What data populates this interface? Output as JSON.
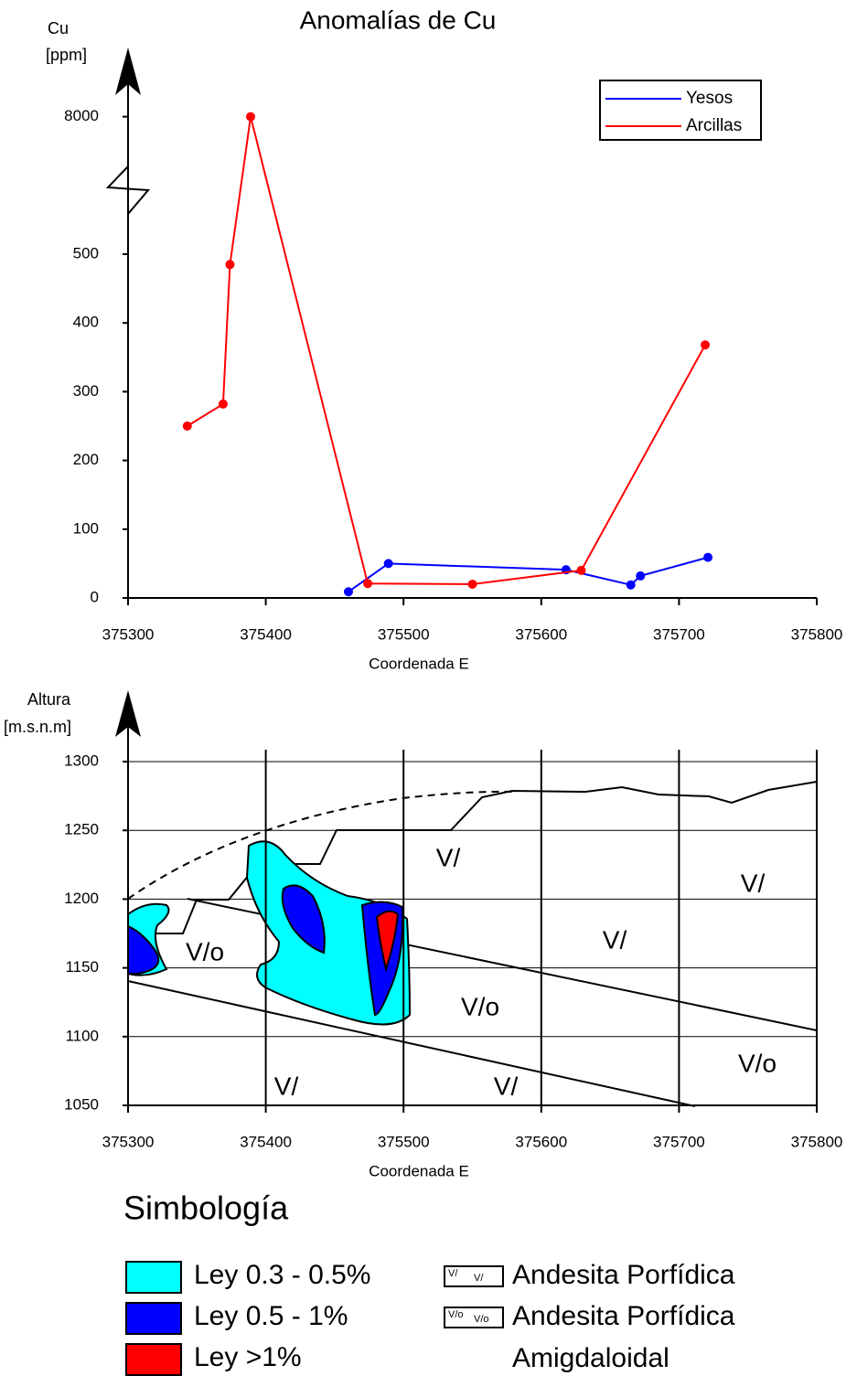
{
  "chart_data": [
    {
      "type": "line",
      "title": "Anomalías de Cu",
      "y_label": [
        "Cu",
        "[ppm]"
      ],
      "x_label": "Coordenada E",
      "xlim": [
        375300,
        375800
      ],
      "xticks": [
        375300,
        375400,
        375500,
        375600,
        375700,
        375800
      ],
      "ylim": [
        0,
        8000
      ],
      "yticks": [
        0,
        100,
        200,
        300,
        400,
        500,
        8000
      ],
      "y_break": true,
      "legend": "upper right",
      "series": [
        {
          "name": "Yesos",
          "color": "#0000ff",
          "x": [
            375460,
            375489,
            375618,
            375665,
            375672,
            375721
          ],
          "values": [
            9,
            50,
            41,
            19,
            32,
            59
          ]
        },
        {
          "name": "Arcillas",
          "color": "#ff0000",
          "x": [
            375343,
            375369,
            375374,
            375389,
            375474,
            375550,
            375629,
            375719
          ],
          "values": [
            250,
            282,
            485,
            8000,
            21,
            20,
            40,
            368
          ]
        }
      ]
    },
    {
      "type": "section",
      "y_label": [
        "Altura",
        "[m.s.n.m]"
      ],
      "x_label": "Coordenada E",
      "xlim": [
        375300,
        375800
      ],
      "xticks": [
        375300,
        375400,
        375500,
        375600,
        375700,
        375800
      ],
      "ylim": [
        1050,
        1300
      ],
      "yticks": [
        1050,
        1100,
        1150,
        1200,
        1250,
        1300
      ],
      "grid": true,
      "rock_labels": [
        "V/",
        "V/",
        "V/",
        "V/o",
        "V/o",
        "V/o",
        "V/",
        "V/"
      ]
    }
  ],
  "symbology": {
    "title": "Simbología",
    "grades": [
      {
        "name": "Ley 0.3 - 0.5%",
        "color": "#00ffff"
      },
      {
        "name": "Ley 0.5 - 1%",
        "color": "#0000ff"
      },
      {
        "name": "Ley >1%",
        "color": "#ff0000"
      }
    ],
    "rocks": [
      {
        "icon": [
          "V/",
          "V/"
        ],
        "name": [
          "Andesita Porfídica"
        ]
      },
      {
        "icon": [
          "V/o",
          "V/o"
        ],
        "name": [
          "Andesita Porfídica",
          "Amigdaloidal"
        ]
      }
    ]
  }
}
